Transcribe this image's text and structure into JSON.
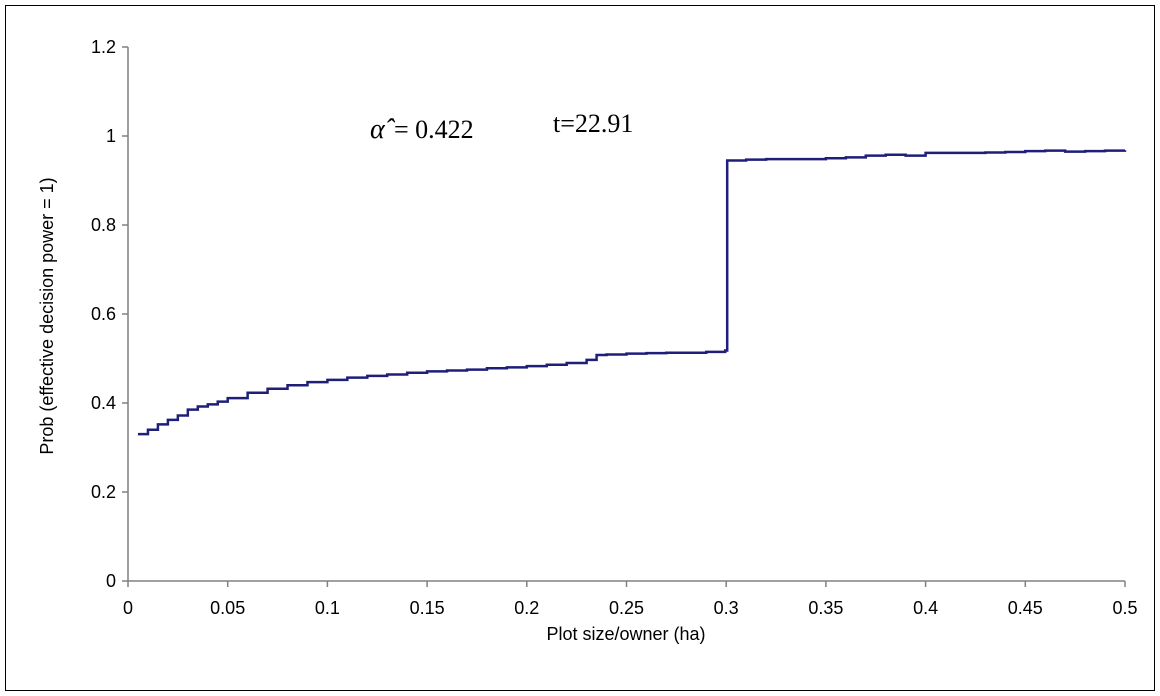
{
  "chart_data": {
    "type": "line",
    "title": "",
    "xlabel": "Plot size/owner (ha)",
    "ylabel": "Prob (effective decision power = 1)",
    "xlim": [
      0,
      0.5
    ],
    "ylim": [
      0,
      1.2
    ],
    "x_ticks": [
      "0",
      "0.05",
      "0.1",
      "0.15",
      "0.2",
      "0.25",
      "0.3",
      "0.35",
      "0.4",
      "0.45",
      "0.5"
    ],
    "y_ticks": [
      "0",
      "0.2",
      "0.4",
      "0.6",
      "0.8",
      "1",
      "1.2"
    ],
    "grid": false,
    "legend": "none",
    "line_color": "#1f1f7a",
    "series": [
      {
        "x": [
          0.005,
          0.01,
          0.015,
          0.02,
          0.025,
          0.03,
          0.035,
          0.04,
          0.045,
          0.05,
          0.06,
          0.07,
          0.08,
          0.09,
          0.1,
          0.11,
          0.12,
          0.13,
          0.14,
          0.15,
          0.16,
          0.17,
          0.18,
          0.19,
          0.2,
          0.21,
          0.22,
          0.23,
          0.235,
          0.24,
          0.25,
          0.26,
          0.27,
          0.28,
          0.29,
          0.2995,
          0.3005,
          0.31,
          0.32,
          0.33,
          0.34,
          0.35,
          0.36,
          0.37,
          0.38,
          0.39,
          0.4,
          0.41,
          0.42,
          0.43,
          0.44,
          0.45,
          0.46,
          0.47,
          0.48,
          0.49,
          0.5
        ],
        "y": [
          0.33,
          0.34,
          0.352,
          0.362,
          0.372,
          0.385,
          0.392,
          0.397,
          0.403,
          0.411,
          0.423,
          0.432,
          0.44,
          0.447,
          0.452,
          0.457,
          0.461,
          0.464,
          0.468,
          0.471,
          0.473,
          0.475,
          0.478,
          0.48,
          0.483,
          0.486,
          0.49,
          0.497,
          0.508,
          0.509,
          0.511,
          0.512,
          0.513,
          0.513,
          0.515,
          0.518,
          0.945,
          0.947,
          0.948,
          0.948,
          0.948,
          0.95,
          0.952,
          0.956,
          0.958,
          0.956,
          0.962,
          0.962,
          0.962,
          0.963,
          0.964,
          0.966,
          0.967,
          0.965,
          0.966,
          0.967,
          0.968
        ]
      }
    ],
    "annotations": {
      "alpha_symbol": "α̂",
      "alpha_text": "= 0.422",
      "t_text": "t=22.91"
    }
  }
}
